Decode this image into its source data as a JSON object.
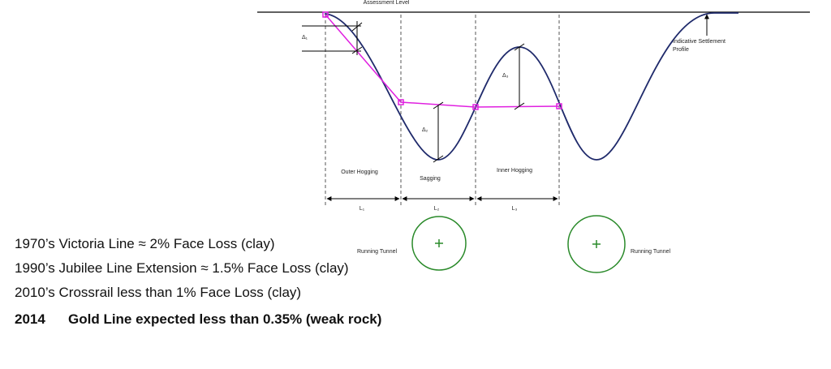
{
  "diagram": {
    "assessment_level": "Assessment Level",
    "settlement_label": [
      "Indicative Settlement",
      "Profile"
    ],
    "deltas": [
      "Δ₁",
      "Δ₂",
      "Δ₃"
    ],
    "zones": [
      "Outer Hogging",
      "Sagging",
      "Inner Hogging"
    ],
    "lengths": [
      "L₁",
      "L₂",
      "L₃"
    ],
    "tunnels": [
      "Running Tunnel",
      "Running Tunnel"
    ]
  },
  "notes": [
    "1970’s Victoria Line ≈ 2% Face Loss (clay)",
    "1990’s Jubilee Line Extension ≈ 1.5% Face Loss (clay)",
    "2010’s Crossrail less than 1% Face Loss (clay)"
  ],
  "highlight": {
    "year": "2014",
    "text": "Gold Line expected less than 0.35% (weak rock)"
  }
}
